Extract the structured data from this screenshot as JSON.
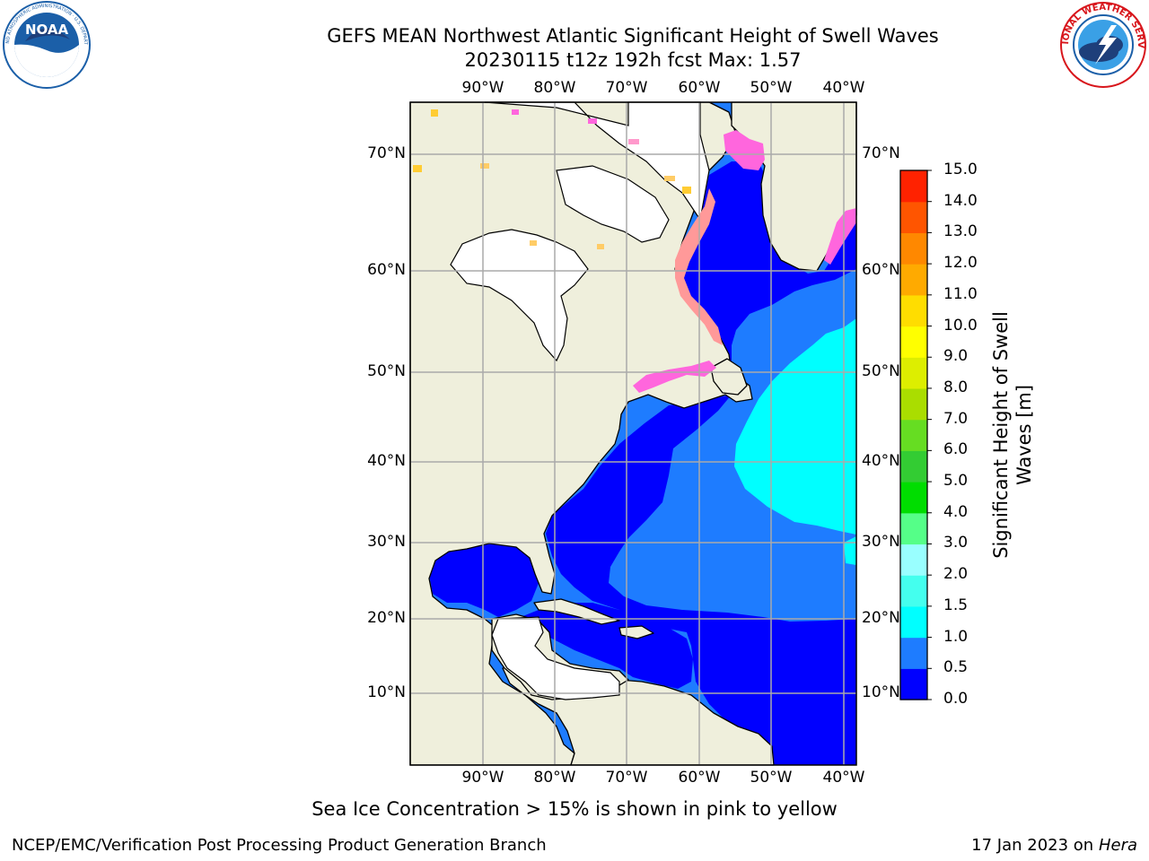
{
  "header": {
    "title_line1": "GEFS MEAN Northwest Atlantic Significant Height of Swell Waves",
    "title_line2": "20230115 t12z 192h fcst   Max: 1.57"
  },
  "logos": {
    "left": {
      "name": "NOAA",
      "text": "NOAA",
      "ring_text": "NATIONAL OCEANIC AND ATMOSPHERIC ADMINISTRATION · U.S. DEPARTMENT OF COMMERCE",
      "color": "#1b5fa8"
    },
    "right": {
      "name": "National Weather Service",
      "ring_text": "NATIONAL WEATHER SERVICE",
      "color": "#d8161c"
    }
  },
  "map": {
    "lon_range": [
      -100,
      -38
    ],
    "lat_range": [
      1,
      75
    ],
    "lon_ticks": [
      "90°W",
      "80°W",
      "70°W",
      "60°W",
      "50°W",
      "40°W"
    ],
    "lat_ticks": [
      "70°N",
      "60°N",
      "50°N",
      "40°N",
      "30°N",
      "20°N",
      "10°N"
    ],
    "gridlines": true,
    "land_color": "#efefdc",
    "ice_colors": [
      "#ff66dd",
      "#ff9999",
      "#ffcc33"
    ]
  },
  "colorbar": {
    "label": "Significant Height of Swell Waves [m]",
    "ticks": [
      "0.0",
      "0.5",
      "1.0",
      "1.5",
      "2.0",
      "3.0",
      "4.0",
      "5.0",
      "6.0",
      "7.0",
      "8.0",
      "9.0",
      "10.0",
      "11.0",
      "12.0",
      "13.0",
      "14.0",
      "15.0"
    ],
    "colors": [
      "#0000ff",
      "#1e7cff",
      "#00ffff",
      "#44ffee",
      "#99ffff",
      "#55ff88",
      "#00dd00",
      "#33cc33",
      "#66dd22",
      "#aadd00",
      "#ddee00",
      "#ffff00",
      "#ffdd00",
      "#ffaa00",
      "#ff8800",
      "#ff5500",
      "#ff2200",
      "#ff0000"
    ]
  },
  "note": "Sea Ice Concentration > 15% is shown in pink to yellow",
  "footer": {
    "left": "NCEP/EMC/Verification Post Processing Product Generation Branch",
    "right_prefix": "17 Jan 2023 on ",
    "right_machine": "Hera"
  }
}
